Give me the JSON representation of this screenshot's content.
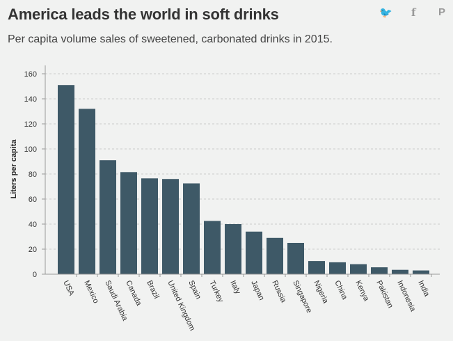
{
  "header": {
    "title": "America leads the world in soft drinks",
    "subtitle": "Per capita volume sales of sweetened, carbonated drinks in 2015."
  },
  "social": [
    {
      "icon": "twitter-icon",
      "glyph": "🐦"
    },
    {
      "icon": "facebook-icon",
      "glyph": "f"
    },
    {
      "icon": "pinterest-icon",
      "glyph": "P"
    }
  ],
  "chart_data": {
    "type": "bar",
    "title": "America leads the world in soft drinks",
    "subtitle": "Per capita volume sales of sweetened, carbonated drinks in 2015.",
    "xlabel": "",
    "ylabel": "Liters per capita",
    "ylim": [
      0,
      165
    ],
    "yticks": [
      0,
      20,
      40,
      60,
      80,
      100,
      120,
      140,
      160
    ],
    "grid": true,
    "bar_color": "#3e5967",
    "categories": [
      "USA",
      "Mexico",
      "Saudi Arabia",
      "Canada",
      "Brazil",
      "United Kingdom",
      "Spain",
      "Turkey",
      "Italy",
      "Japan",
      "Russia",
      "Singapore",
      "Nigeria",
      "China",
      "Kenya",
      "Pakistan",
      "Indonesia",
      "India"
    ],
    "values": [
      151,
      132,
      91,
      81.5,
      76.5,
      76,
      72.5,
      42.5,
      40,
      34,
      29,
      25,
      10.5,
      9.5,
      8,
      5.5,
      3.5,
      3
    ]
  }
}
